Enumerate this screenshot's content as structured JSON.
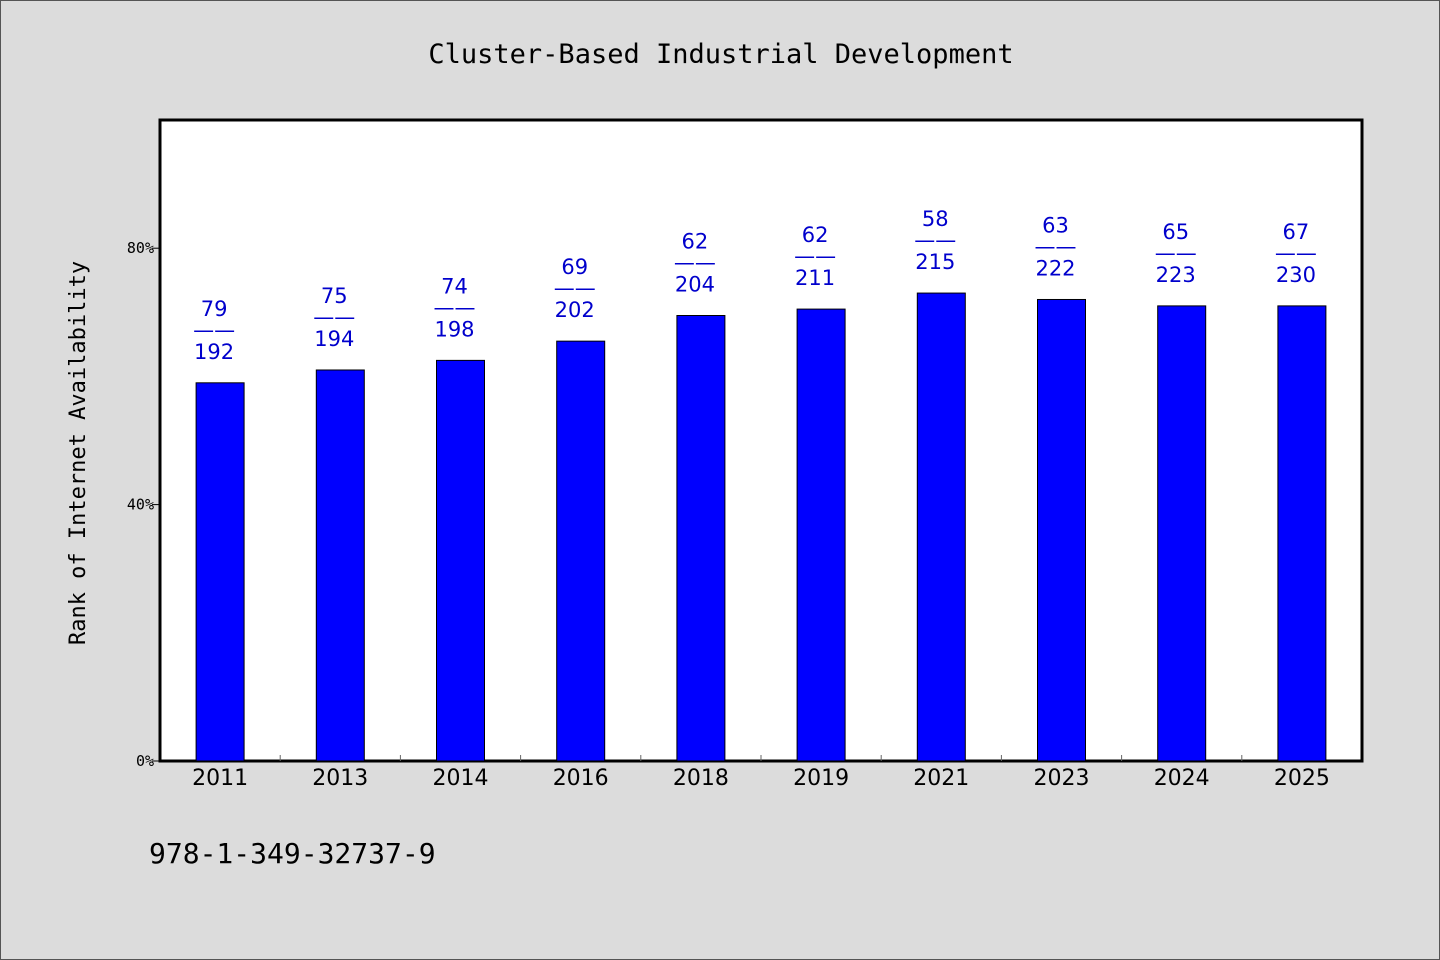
{
  "chart_data": {
    "type": "bar",
    "title": "Cluster-Based Industrial Development",
    "xlabel": "",
    "ylabel": "Rank of Internet Availability",
    "categories": [
      "2011",
      "2013",
      "2014",
      "2016",
      "2018",
      "2019",
      "2021",
      "2023",
      "2024",
      "2025"
    ],
    "values": [
      59,
      61,
      62.5,
      65.5,
      69.5,
      70.5,
      73,
      72,
      71,
      71
    ],
    "ylim": [
      0,
      100
    ],
    "yticks": [
      0,
      40,
      80
    ],
    "ytick_labels": [
      "0%",
      "40%",
      "80%"
    ],
    "data_labels": [
      {
        "top": "79",
        "sep": "——",
        "bottom": "192"
      },
      {
        "top": "75",
        "sep": "——",
        "bottom": "194"
      },
      {
        "top": "74",
        "sep": "——",
        "bottom": "198"
      },
      {
        "top": "69",
        "sep": "——",
        "bottom": "202"
      },
      {
        "top": "62",
        "sep": "——",
        "bottom": "204"
      },
      {
        "top": "62",
        "sep": "——",
        "bottom": "211"
      },
      {
        "top": "58",
        "sep": "——",
        "bottom": "215"
      },
      {
        "top": "63",
        "sep": "——",
        "bottom": "222"
      },
      {
        "top": "65",
        "sep": "——",
        "bottom": "223"
      },
      {
        "top": "67",
        "sep": "——",
        "bottom": "230"
      }
    ],
    "bar_color": "#0000ff",
    "label_color": "#0000cc",
    "grid": false,
    "legend": "none"
  },
  "footer": {
    "isbn": "978-1-349-32737-9"
  },
  "colors": {
    "background": "#dcdcdc",
    "plot_background": "#ffffff"
  }
}
